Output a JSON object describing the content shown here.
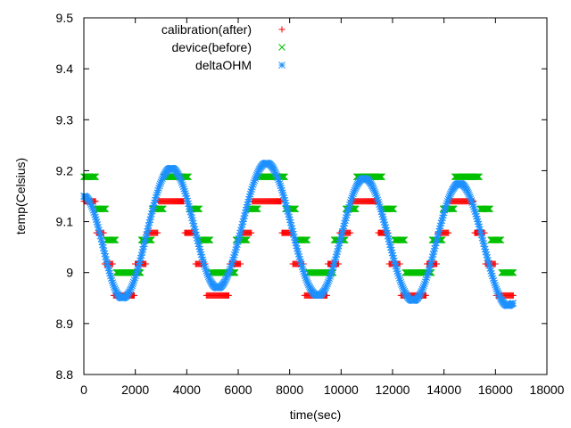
{
  "chart_data": {
    "type": "scatter",
    "title": "",
    "xlabel": "time(sec)",
    "ylabel": "temp(Celsius)",
    "xlim": [
      0,
      18000
    ],
    "ylim": [
      8.8,
      9.5
    ],
    "grid": false,
    "legend_position": "top-left",
    "x_ticks": [
      0,
      2000,
      4000,
      6000,
      8000,
      10000,
      12000,
      14000,
      16000,
      18000
    ],
    "x_tick_labels": [
      "0",
      "2000",
      "4000",
      "6000",
      "8000",
      "10000",
      "12000",
      "14000",
      "16000",
      "18000"
    ],
    "y_ticks": [
      8.8,
      8.9,
      9.0,
      9.1,
      9.2,
      9.3,
      9.4,
      9.5
    ],
    "y_tick_labels": [
      "8.8",
      "8.9",
      "9",
      "9.1",
      "9.2",
      "9.3",
      "9.4",
      "9.5"
    ],
    "series": [
      {
        "name": "calibration(after)",
        "marker": "plus",
        "color": "#ff0000",
        "x_start": 0,
        "x_end": 16700,
        "x_step": 35,
        "quantized": true,
        "levels": [
          8.955,
          9.017,
          9.078,
          9.14
        ],
        "wave_knots_x": [
          0,
          1500,
          3400,
          5200,
          7100,
          9000,
          10900,
          12800,
          14700,
          16500,
          16700
        ],
        "wave_knots_y": [
          9.15,
          8.96,
          9.14,
          8.96,
          9.15,
          8.96,
          9.14,
          8.955,
          9.14,
          8.955,
          8.955
        ]
      },
      {
        "name": "device(before)",
        "marker": "cross",
        "color": "#00c000",
        "x_start": 0,
        "x_end": 16700,
        "x_step": 35,
        "quantized": true,
        "levels": [
          9.0,
          9.064,
          9.125,
          9.188
        ],
        "wave_knots_x": [
          0,
          1700,
          3600,
          5400,
          7300,
          9200,
          11100,
          13000,
          14900,
          16700
        ],
        "wave_knots_y": [
          9.188,
          9.0,
          9.188,
          9.0,
          9.188,
          9.0,
          9.188,
          9.0,
          9.188,
          9.0
        ]
      },
      {
        "name": "deltaOHM",
        "marker": "star",
        "color": "#1e90ff",
        "x_start": 0,
        "x_end": 16700,
        "x_step": 28,
        "quantized": false,
        "wave_knots_x": [
          0,
          1500,
          3400,
          5200,
          7100,
          9100,
          10900,
          12800,
          14600,
          16500,
          16700
        ],
        "wave_knots_y": [
          9.15,
          8.95,
          9.205,
          8.97,
          9.215,
          8.955,
          9.185,
          8.945,
          9.175,
          8.935,
          8.94
        ]
      }
    ]
  }
}
